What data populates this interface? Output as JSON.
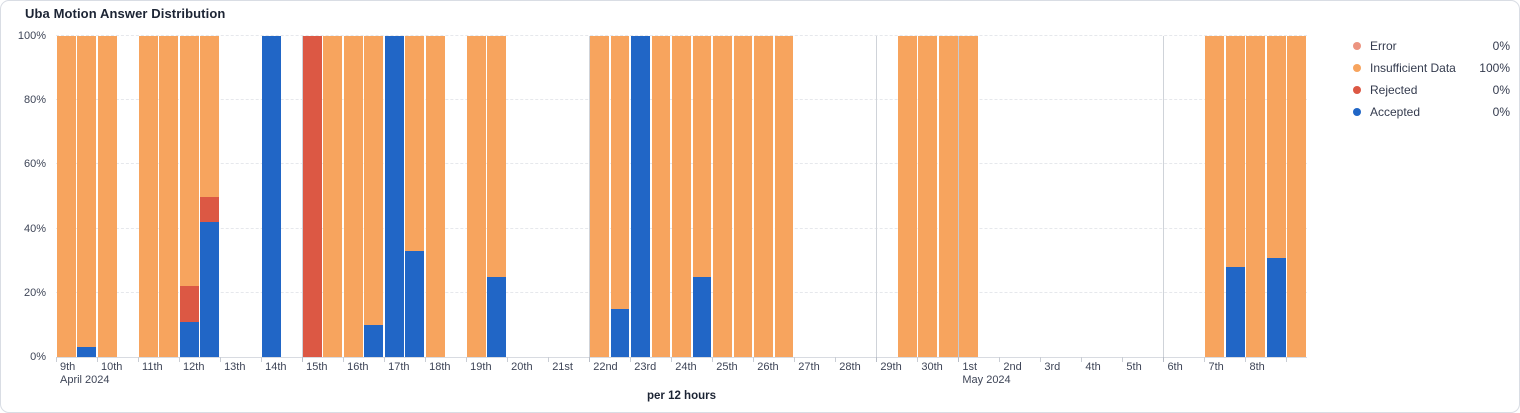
{
  "card": {
    "title": "Uba Motion Answer Distribution",
    "x_caption": "per 12 hours"
  },
  "chart_data": {
    "type": "bar",
    "stacked": true,
    "title": "Uba Motion Answer Distribution",
    "x_caption": "per 12 hours",
    "unit": "percent",
    "ylim": [
      0,
      100
    ],
    "y_ticks": [
      "0%",
      "20%",
      "40%",
      "60%",
      "80%",
      "100%"
    ],
    "grid": "horizontal-dashed",
    "legend_position": "right",
    "legend": [
      {
        "label": "Error",
        "value": "0%",
        "color": "#ec9480"
      },
      {
        "label": "Insufficient Data",
        "value": "100%",
        "color": "#f7a45e"
      },
      {
        "label": "Rejected",
        "value": "0%",
        "color": "#dc5844"
      },
      {
        "label": "Accepted",
        "value": "0%",
        "color": "#2166c6"
      }
    ],
    "categories": [
      "Apr 9 AM",
      "Apr 9 PM",
      "Apr 10 AM",
      "Apr 10 PM",
      "Apr 11 AM",
      "Apr 11 PM",
      "Apr 12 AM",
      "Apr 12 PM",
      "Apr 13 AM",
      "Apr 13 PM",
      "Apr 14 AM",
      "Apr 14 PM",
      "Apr 15 AM",
      "Apr 15 PM",
      "Apr 16 AM",
      "Apr 16 PM",
      "Apr 17 AM",
      "Apr 17 PM",
      "Apr 18 AM",
      "Apr 18 PM",
      "Apr 19 AM",
      "Apr 19 PM",
      "Apr 20 AM",
      "Apr 20 PM",
      "Apr 21 AM",
      "Apr 21 PM",
      "Apr 22 AM",
      "Apr 22 PM",
      "Apr 23 AM",
      "Apr 23 PM",
      "Apr 24 AM",
      "Apr 24 PM",
      "Apr 25 AM",
      "Apr 25 PM",
      "Apr 26 AM",
      "Apr 26 PM",
      "Apr 27 AM",
      "Apr 27 PM",
      "Apr 28 AM",
      "Apr 28 PM",
      "Apr 29 AM",
      "Apr 29 PM",
      "Apr 30 AM",
      "Apr 30 PM",
      "May 1 AM",
      "May 1 PM",
      "May 2 AM",
      "May 2 PM",
      "May 3 AM",
      "May 3 PM",
      "May 4 AM",
      "May 4 PM",
      "May 5 AM",
      "May 5 PM",
      "May 6 AM",
      "May 6 PM",
      "May 7 AM",
      "May 7 PM",
      "May 8 AM",
      "May 8 PM",
      "May 9 AM"
    ],
    "series": [
      {
        "name": "Error",
        "color": "#ec9480",
        "values": [
          0,
          0,
          0,
          0,
          0,
          0,
          0,
          0,
          0,
          0,
          0,
          0,
          0,
          0,
          0,
          0,
          0,
          0,
          0,
          0,
          0,
          0,
          0,
          0,
          0,
          0,
          0,
          0,
          0,
          0,
          0,
          0,
          0,
          0,
          0,
          0,
          0,
          0,
          0,
          0,
          0,
          0,
          0,
          0,
          0,
          0,
          0,
          0,
          0,
          0,
          0,
          0,
          0,
          0,
          0,
          0,
          0,
          0,
          0,
          0,
          0
        ]
      },
      {
        "name": "Insufficient Data",
        "color": "#f7a45e",
        "values": [
          100,
          97,
          100,
          0,
          100,
          100,
          78,
          50,
          0,
          0,
          0,
          0,
          0,
          100,
          100,
          90,
          0,
          67,
          100,
          0,
          100,
          75,
          0,
          0,
          0,
          0,
          100,
          85,
          0,
          100,
          100,
          75,
          100,
          100,
          100,
          100,
          0,
          0,
          0,
          0,
          0,
          100,
          100,
          100,
          100,
          0,
          0,
          0,
          0,
          0,
          0,
          0,
          0,
          0,
          0,
          0,
          100,
          72,
          100,
          69,
          100
        ]
      },
      {
        "name": "Rejected",
        "color": "#dc5844",
        "values": [
          0,
          0,
          0,
          0,
          0,
          0,
          11,
          8,
          0,
          0,
          0,
          0,
          100,
          0,
          0,
          0,
          0,
          0,
          0,
          0,
          0,
          0,
          0,
          0,
          0,
          0,
          0,
          0,
          0,
          0,
          0,
          0,
          0,
          0,
          0,
          0,
          0,
          0,
          0,
          0,
          0,
          0,
          0,
          0,
          0,
          0,
          0,
          0,
          0,
          0,
          0,
          0,
          0,
          0,
          0,
          0,
          0,
          0,
          0,
          0,
          0
        ]
      },
      {
        "name": "Accepted",
        "color": "#2166c6",
        "values": [
          0,
          3,
          0,
          0,
          0,
          0,
          11,
          42,
          0,
          0,
          100,
          0,
          0,
          0,
          0,
          10,
          100,
          33,
          0,
          0,
          0,
          25,
          0,
          0,
          0,
          0,
          0,
          15,
          100,
          0,
          0,
          25,
          0,
          0,
          0,
          0,
          0,
          0,
          0,
          0,
          0,
          0,
          0,
          0,
          0,
          0,
          0,
          0,
          0,
          0,
          0,
          0,
          0,
          0,
          0,
          0,
          0,
          28,
          0,
          31,
          0
        ]
      }
    ],
    "x_axis": {
      "days": [
        {
          "label": "9th",
          "sub": "April 2024"
        },
        {
          "label": "10th"
        },
        {
          "label": "11th"
        },
        {
          "label": "12th"
        },
        {
          "label": "13th"
        },
        {
          "label": "14th"
        },
        {
          "label": "15th"
        },
        {
          "label": "16th"
        },
        {
          "label": "17th"
        },
        {
          "label": "18th"
        },
        {
          "label": "19th"
        },
        {
          "label": "20th"
        },
        {
          "label": "21st"
        },
        {
          "label": "22nd"
        },
        {
          "label": "23rd"
        },
        {
          "label": "24th"
        },
        {
          "label": "25th"
        },
        {
          "label": "26th"
        },
        {
          "label": "27th"
        },
        {
          "label": "28th"
        },
        {
          "label": "29th"
        },
        {
          "label": "30th"
        },
        {
          "label": "1st",
          "sub": "May 2024"
        },
        {
          "label": "2nd"
        },
        {
          "label": "3rd"
        },
        {
          "label": "4th"
        },
        {
          "label": "5th"
        },
        {
          "label": "6th"
        },
        {
          "label": "7th"
        },
        {
          "label": "8th"
        },
        {
          "label": ""
        }
      ],
      "week_separator_day_indices": [
        6,
        13,
        20,
        27
      ],
      "month_separator_day_indices": [
        22
      ]
    }
  }
}
